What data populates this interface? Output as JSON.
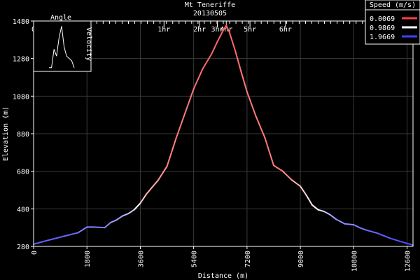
{
  "chart_data": {
    "type": "line",
    "title": "Mt Teneriffe",
    "subtitle": "20130505",
    "xlabel": "Distance (m)",
    "ylabel": "Elevation (m)",
    "xlim": [
      0,
      12800
    ],
    "ylim": [
      280,
      1480
    ],
    "x_ticks": [
      "0",
      "1800",
      "3600",
      "5400",
      "7200",
      "9000",
      "10800",
      "12600"
    ],
    "y_ticks": [
      "280",
      "480",
      "680",
      "880",
      "1080",
      "1280",
      "1480"
    ],
    "grid": true,
    "time_axis": {
      "labels": [
        {
          "text": "0",
          "x": 0
        },
        {
          "text": "1hr",
          "x": 4400
        },
        {
          "text": "2hr",
          "x": 5600
        },
        {
          "text": "3hr",
          "x": 6200
        },
        {
          "text": "4hr",
          "x": 6500
        },
        {
          "text": "5hr",
          "x": 7300
        },
        {
          "text": "6hr",
          "x": 8500
        }
      ]
    },
    "legend": {
      "title": "Speed (m/s)",
      "placement": "top-right",
      "entries": [
        {
          "label": "0.0069",
          "color": "#ff4040"
        },
        {
          "label": "0.9869",
          "color": "#ffffff"
        },
        {
          "label": "1.9669",
          "color": "#4040ff"
        }
      ]
    },
    "inset": {
      "title": "Angle",
      "right_label": "Velocity",
      "values": [
        0.05,
        0.05,
        0.45,
        0.3,
        0.7,
        0.95,
        0.5,
        0.3,
        0.25,
        0.2,
        0.05
      ]
    },
    "series": [
      {
        "x": [
          0,
          500,
          1000,
          1500,
          1800,
          2000,
          2400,
          2600,
          2800,
          3000,
          3200,
          3400,
          3600,
          3800,
          4000,
          4200,
          4500,
          4800,
          5100,
          5400,
          5700,
          6000,
          6200,
          6400,
          6500,
          6600,
          6800,
          7000,
          7200,
          7500,
          7800,
          8100,
          8400,
          8700,
          9000,
          9200,
          9400,
          9600,
          9800,
          10000,
          10200,
          10500,
          10800,
          11000,
          11200,
          11600,
          12000,
          12400,
          12800
        ],
        "y": [
          292,
          313,
          333,
          353,
          383,
          383,
          380,
          407,
          421,
          442,
          455,
          476,
          510,
          557,
          595,
          632,
          706,
          852,
          985,
          1118,
          1224,
          1303,
          1370,
          1431,
          1456,
          1423,
          1323,
          1211,
          1103,
          973,
          860,
          711,
          681,
          635,
          600,
          553,
          500,
          475,
          466,
          449,
          425,
          400,
          395,
          380,
          368,
          350,
          325,
          305,
          287
        ],
        "speed": [
          1.8,
          1.8,
          1.8,
          1.7,
          1.6,
          1.6,
          1.7,
          1.5,
          1.5,
          1.4,
          1.3,
          1.2,
          0.8,
          0.6,
          0.6,
          0.5,
          0.4,
          0.3,
          0.3,
          0.3,
          0.2,
          0.2,
          0.2,
          0.2,
          0.1,
          0.2,
          0.2,
          0.3,
          0.3,
          0.3,
          0.3,
          0.3,
          0.3,
          0.5,
          0.7,
          0.8,
          0.9,
          1.0,
          1.2,
          1.4,
          1.5,
          1.6,
          1.6,
          1.7,
          1.7,
          1.8,
          1.8,
          1.9,
          1.9
        ]
      }
    ]
  }
}
